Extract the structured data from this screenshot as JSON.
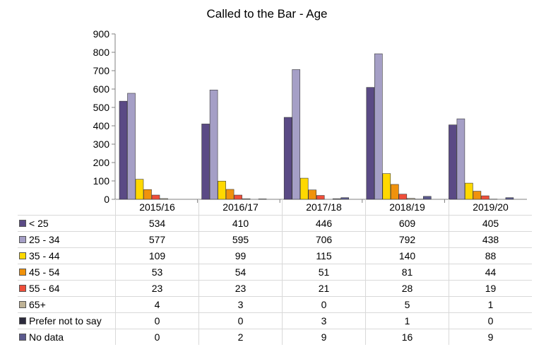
{
  "chart_data": {
    "type": "bar",
    "title": "Called to the Bar - Age",
    "xlabel": "",
    "ylabel": "",
    "ylim": [
      0,
      900
    ],
    "yticks": [
      0,
      100,
      200,
      300,
      400,
      500,
      600,
      700,
      800,
      900
    ],
    "grid": false,
    "legend": "data-table",
    "categories": [
      "2015/16",
      "2016/17",
      "2017/18",
      "2018/19",
      "2019/20"
    ],
    "series": [
      {
        "name": "< 25",
        "color": "#5a4a85",
        "values": [
          534,
          410,
          446,
          609,
          405
        ]
      },
      {
        "name": "25 - 34",
        "color": "#a59fc6",
        "values": [
          577,
          595,
          706,
          792,
          438
        ]
      },
      {
        "name": "35 - 44",
        "color": "#ffd800",
        "values": [
          109,
          99,
          115,
          140,
          88
        ]
      },
      {
        "name": "45 - 54",
        "color": "#f0920c",
        "values": [
          53,
          54,
          51,
          81,
          44
        ]
      },
      {
        "name": "55 - 64",
        "color": "#ef4e3a",
        "values": [
          23,
          23,
          21,
          28,
          19
        ]
      },
      {
        "name": "65+",
        "color": "#bfb396",
        "values": [
          4,
          3,
          0,
          5,
          1
        ]
      },
      {
        "name": "Prefer not to say",
        "color": "#2c2a3c",
        "values": [
          0,
          0,
          3,
          1,
          0
        ]
      },
      {
        "name": "No data",
        "color": "#5b5a8e",
        "values": [
          0,
          2,
          9,
          16,
          9
        ]
      }
    ]
  }
}
